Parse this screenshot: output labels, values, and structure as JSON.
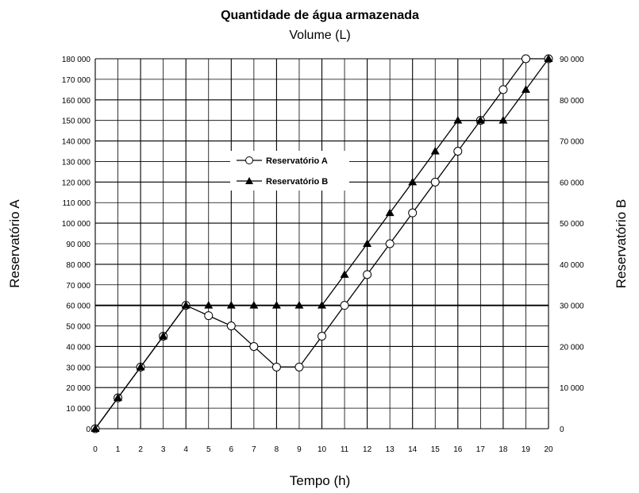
{
  "chart_data": {
    "type": "line",
    "title": "Quantidade de água armazenada",
    "subtitle": "Volume (L)",
    "xlabel": "Tempo (h)",
    "ylabel_left": "Reservatório A",
    "ylabel_right": "Reservatório B",
    "x": [
      0,
      1,
      2,
      3,
      4,
      5,
      6,
      7,
      8,
      9,
      10,
      11,
      12,
      13,
      14,
      15,
      16,
      17,
      18,
      19,
      20
    ],
    "xlim": [
      0,
      20
    ],
    "ylim_left": [
      0,
      180000
    ],
    "ylim_right": [
      0,
      90000
    ],
    "x_ticks": [
      "0",
      "1",
      "2",
      "3",
      "4",
      "5",
      "6",
      "7",
      "8",
      "9",
      "10",
      "11",
      "12",
      "13",
      "14",
      "15",
      "16",
      "17",
      "18",
      "19",
      "20"
    ],
    "y_ticks_left": [
      "0",
      "10 000",
      "20 000",
      "30 000",
      "40 000",
      "50 000",
      "60 000",
      "70 000",
      "80 000",
      "90 000",
      "100 000",
      "110 000",
      "120 000",
      "130 000",
      "140 000",
      "150 000",
      "160 000",
      "170 000",
      "180 000"
    ],
    "y_ticks_right": [
      "0",
      "10 000",
      "20 000",
      "30 000",
      "40 000",
      "50 000",
      "60 000",
      "70 000",
      "80 000",
      "90 000"
    ],
    "grid": true,
    "legend_position": "center-left",
    "series": [
      {
        "name": "Reservatório A",
        "axis": "left",
        "marker": "circle",
        "values": [
          0,
          15000,
          30000,
          45000,
          60000,
          55000,
          50000,
          40000,
          30000,
          30000,
          45000,
          60000,
          75000,
          90000,
          105000,
          120000,
          135000,
          150000,
          165000,
          180000,
          180000
        ]
      },
      {
        "name": "Reservatório B",
        "axis": "right",
        "marker": "triangle",
        "values": [
          0,
          7500,
          15000,
          22500,
          30000,
          30000,
          30000,
          30000,
          30000,
          30000,
          30000,
          37500,
          45000,
          52500,
          60000,
          67500,
          75000,
          75000,
          75000,
          82500,
          90000
        ]
      }
    ]
  }
}
